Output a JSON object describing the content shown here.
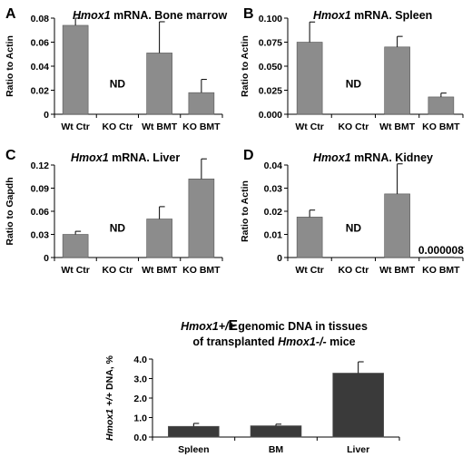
{
  "chart_data": [
    {
      "type": "bar",
      "panel": "A",
      "title_italic": "Hmox1",
      "title_rest": " mRNA. Bone marrow",
      "ylabel": "Ratio to Actin",
      "categories": [
        "Wt Ctr",
        "KO Ctr",
        "Wt BMT",
        "KO BMT"
      ],
      "values": [
        0.074,
        0,
        0.051,
        0.018
      ],
      "errors": [
        0.006,
        0,
        0.026,
        0.011
      ],
      "ylim": [
        0,
        0.08
      ],
      "yticks": [
        "0",
        "0.02",
        "0.04",
        "0.06",
        "0.08"
      ],
      "bar_labels": [
        "",
        "ND",
        "",
        ""
      ],
      "color": "#8c8c8c"
    },
    {
      "type": "bar",
      "panel": "B",
      "title_italic": "Hmox1",
      "title_rest": " mRNA. Spleen",
      "ylabel": "Ratio to Actin",
      "categories": [
        "Wt Ctr",
        "KO Ctr",
        "Wt BMT",
        "KO BMT"
      ],
      "values": [
        0.075,
        0,
        0.07,
        0.018
      ],
      "errors": [
        0.021,
        0,
        0.011,
        0.004
      ],
      "ylim": [
        0,
        0.1
      ],
      "yticks": [
        "0.000",
        "0.025",
        "0.050",
        "0.075",
        "0.100"
      ],
      "bar_labels": [
        "",
        "ND",
        "",
        ""
      ],
      "color": "#8c8c8c"
    },
    {
      "type": "bar",
      "panel": "C",
      "title_italic": "Hmox1",
      "title_rest": " mRNA. Liver",
      "ylabel": "Ratio to Gapdh",
      "categories": [
        "Wt Ctr",
        "KO Ctr",
        "Wt BMT",
        "KO BMT"
      ],
      "values": [
        0.03,
        0,
        0.05,
        0.102
      ],
      "errors": [
        0.004,
        0,
        0.016,
        0.026
      ],
      "ylim": [
        0,
        0.12
      ],
      "yticks": [
        "0",
        "0.03",
        "0.06",
        "0.09",
        "0.12"
      ],
      "bar_labels": [
        "",
        "ND",
        "",
        ""
      ],
      "color": "#8c8c8c"
    },
    {
      "type": "bar",
      "panel": "D",
      "title_italic": "Hmox1",
      "title_rest": "  mRNA. Kidney",
      "ylabel": "Ratio to Actin",
      "categories": [
        "Wt Ctr",
        "KO Ctr",
        "Wt BMT",
        "KO BMT"
      ],
      "values": [
        0.0175,
        0,
        0.0275,
        8e-06
      ],
      "errors": [
        0.003,
        0,
        0.013,
        0
      ],
      "ylim": [
        0,
        0.04
      ],
      "yticks": [
        "0",
        "0.01",
        "0.02",
        "0.03",
        "0.04"
      ],
      "bar_labels": [
        "",
        "ND",
        "",
        "0.000008"
      ],
      "color": "#8c8c8c"
    },
    {
      "type": "bar",
      "panel": "E",
      "title_line1_italic": "Hmox1+/+",
      "title_line1_rest": " genomic DNA in tissues",
      "title_line2_rest": "of transplanted ",
      "title_line2_italic": "Hmox1-/-",
      "title_line2_end": " mice",
      "ylabel_italic": "Hmox1 +/+",
      "ylabel_rest": " DNA, %",
      "categories": [
        "Spleen",
        "BM",
        "Liver"
      ],
      "values": [
        0.55,
        0.58,
        3.28
      ],
      "errors": [
        0.15,
        0.08,
        0.58
      ],
      "ylim": [
        0,
        4.0
      ],
      "yticks": [
        "0.0",
        "1.0",
        "2.0",
        "3.0",
        "4.0"
      ],
      "color": "#3a3a3a"
    }
  ]
}
